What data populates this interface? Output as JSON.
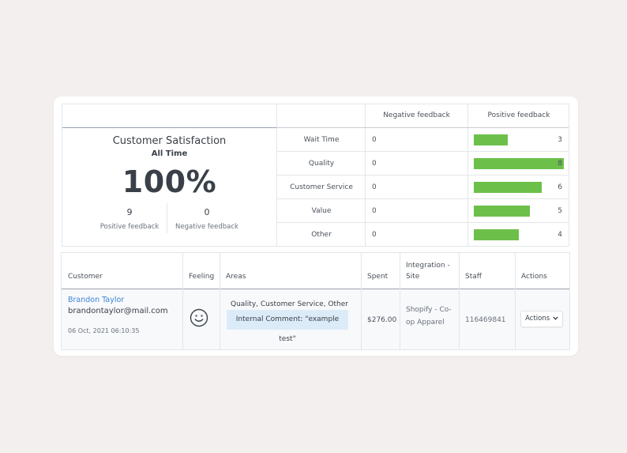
{
  "summary": {
    "title": "Customer Satisfaction",
    "period": "All Time",
    "percentage": "100%",
    "positive_count": "9",
    "positive_label": "Positive feedback",
    "negative_count": "0",
    "negative_label": "Negative feedback",
    "col_negative": "Negative feedback",
    "col_positive": "Positive feedback",
    "bar_color": "#6cc04a",
    "rows": [
      {
        "label": "Wait Time",
        "negative": "0",
        "positive": "3",
        "fill": 0.375
      },
      {
        "label": "Quality",
        "negative": "0",
        "positive": "8",
        "fill": 1.0
      },
      {
        "label": "Customer Service",
        "negative": "0",
        "positive": "6",
        "fill": 0.75
      },
      {
        "label": "Value",
        "negative": "0",
        "positive": "5",
        "fill": 0.625
      },
      {
        "label": "Other",
        "negative": "0",
        "positive": "4",
        "fill": 0.5
      }
    ]
  },
  "table": {
    "headers": {
      "customer": "Customer",
      "feeling": "Feeling",
      "areas": "Areas",
      "spent": "Spent",
      "integration_1": "Integration -",
      "integration_2": "Site",
      "staff": "Staff",
      "actions": "Actions"
    },
    "row": {
      "name": "Brandon Taylor",
      "email": "brandontaylor@mail.com",
      "date": "06 Oct, 2021 06:10:35",
      "feeling_icon": "smiley-face-icon",
      "areas": "Quality, Customer Service, Other",
      "comment": "Internal Comment: \"example test\"",
      "spent": "$276.00",
      "site_1": "Shopify - Co-",
      "site_2": "op Apparel",
      "staff": "116469841",
      "actions_label": "Actions",
      "actions_icon": "chevron-down-icon"
    }
  }
}
